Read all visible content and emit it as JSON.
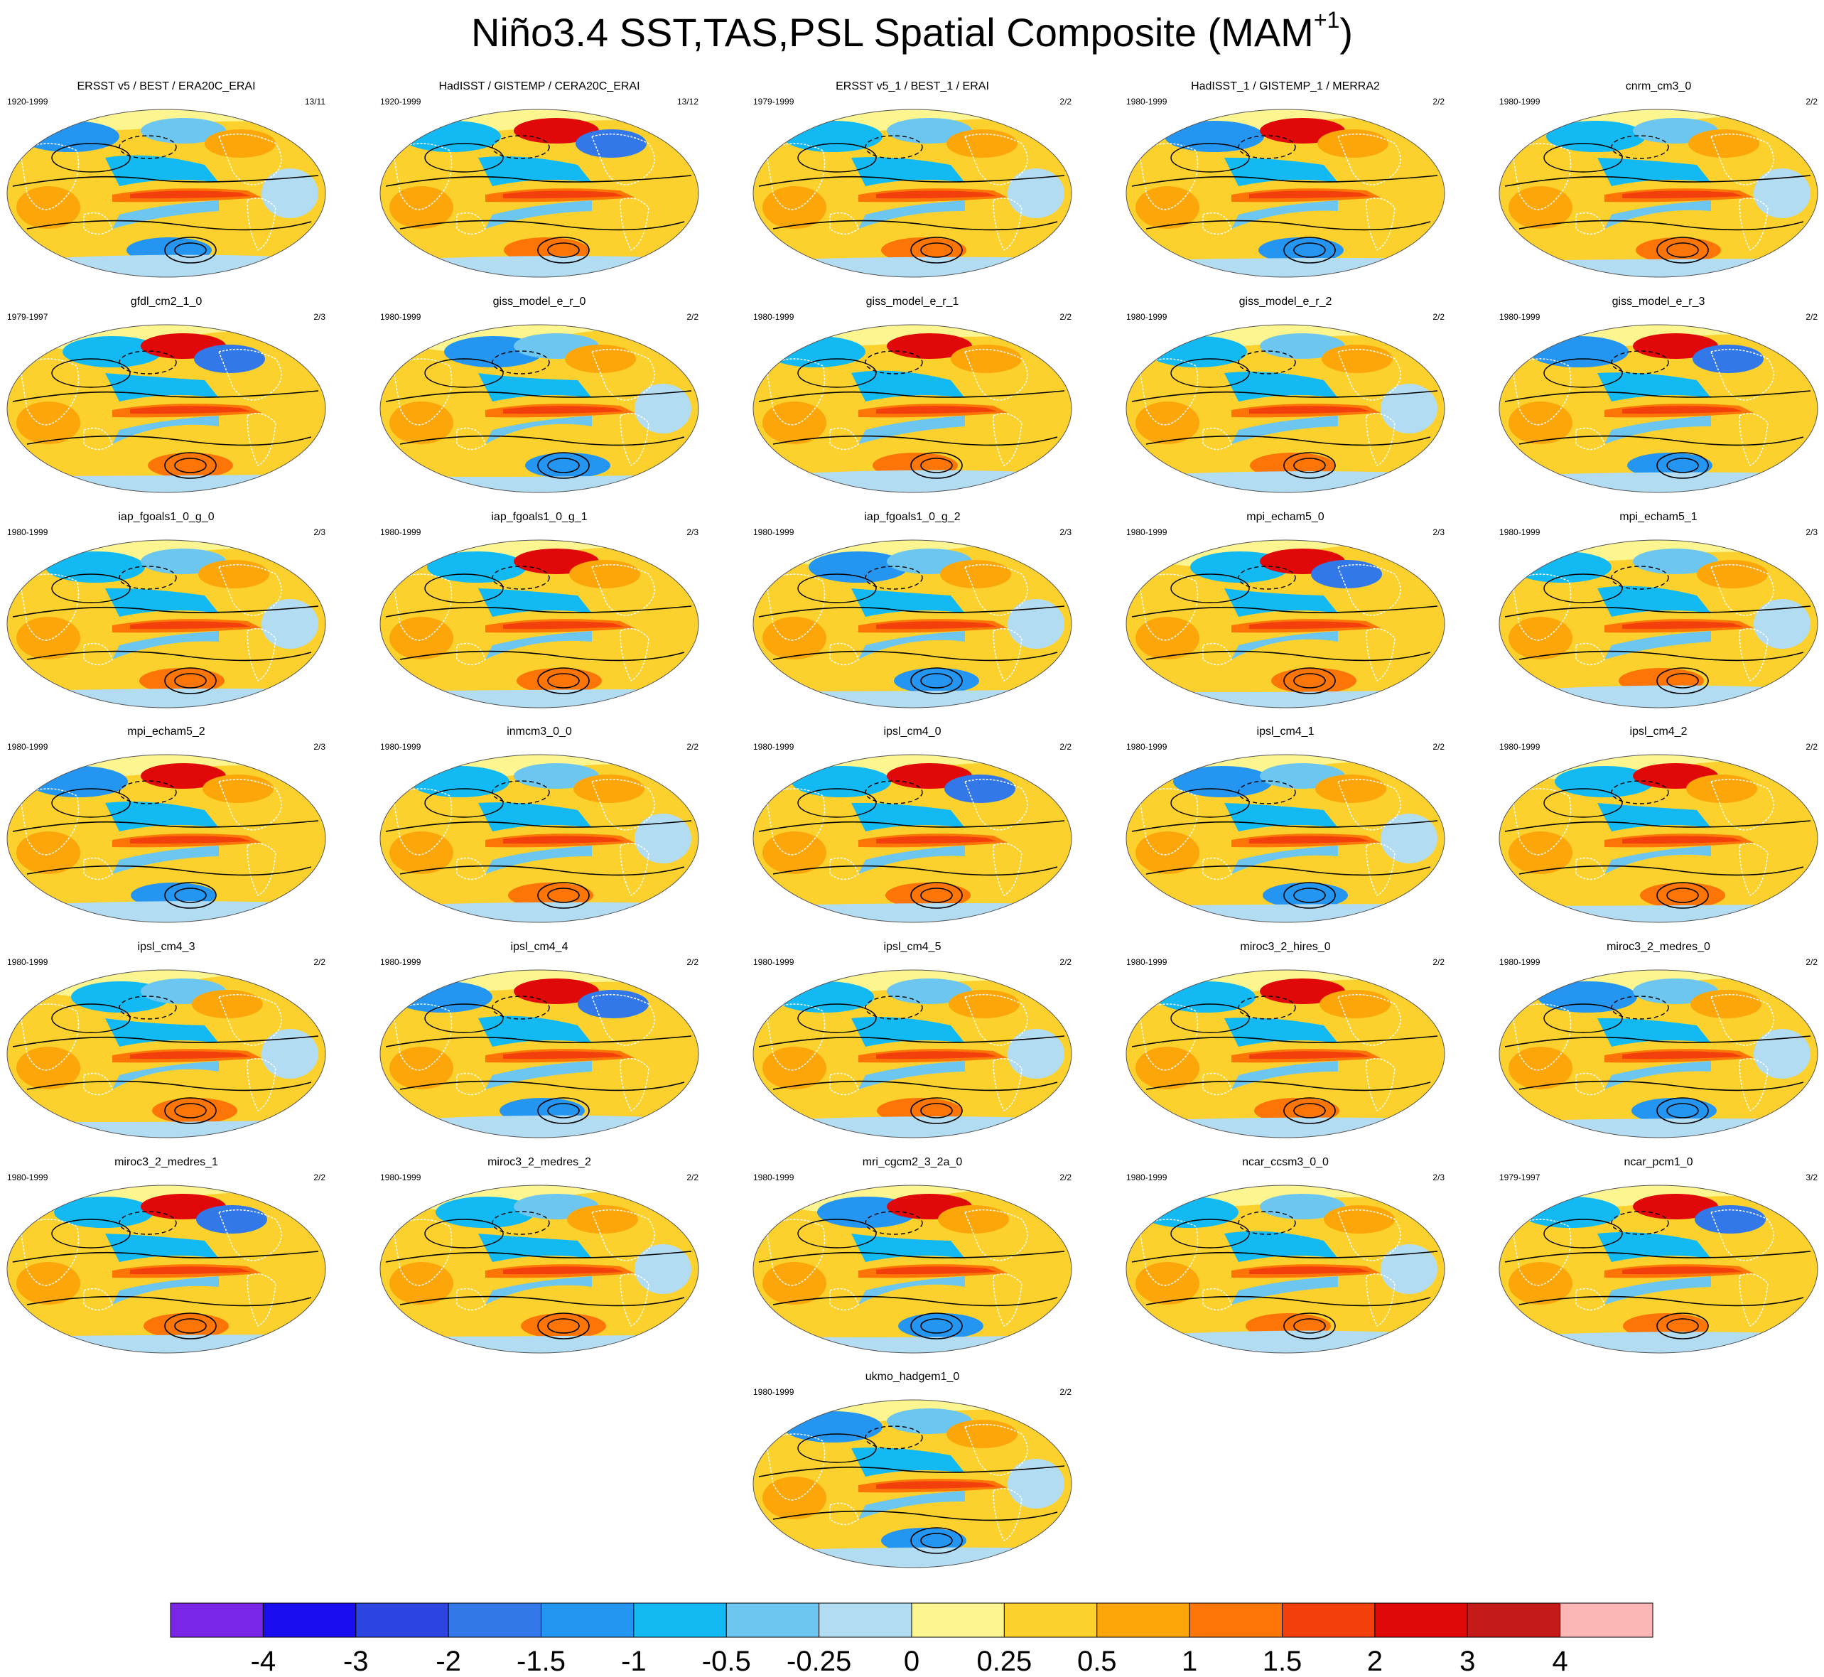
{
  "figure": {
    "title_main": "Niño3.4 SST,TAS,PSL Spatial Composite (MAM",
    "title_sup": "+1",
    "title_close": ")"
  },
  "panels": [
    {
      "title": "ERSST v5 / BEST / ERA20C_ERAI",
      "years": "1920-1999",
      "count": "13/11"
    },
    {
      "title": "HadISST / GISTEMP / CERA20C_ERAI",
      "years": "1920-1999",
      "count": "13/12"
    },
    {
      "title": "ERSST v5_1 / BEST_1 / ERAI",
      "years": "1979-1999",
      "count": "2/2"
    },
    {
      "title": "HadISST_1 / GISTEMP_1 / MERRA2",
      "years": "1980-1999",
      "count": "2/2"
    },
    {
      "title": "cnrm_cm3_0",
      "years": "1980-1999",
      "count": "2/2"
    },
    {
      "title": "gfdl_cm2_1_0",
      "years": "1979-1997",
      "count": "2/3"
    },
    {
      "title": "giss_model_e_r_0",
      "years": "1980-1999",
      "count": "2/2"
    },
    {
      "title": "giss_model_e_r_1",
      "years": "1980-1999",
      "count": "2/2"
    },
    {
      "title": "giss_model_e_r_2",
      "years": "1980-1999",
      "count": "2/2"
    },
    {
      "title": "giss_model_e_r_3",
      "years": "1980-1999",
      "count": "2/2"
    },
    {
      "title": "iap_fgoals1_0_g_0",
      "years": "1980-1999",
      "count": "2/3"
    },
    {
      "title": "iap_fgoals1_0_g_1",
      "years": "1980-1999",
      "count": "2/3"
    },
    {
      "title": "iap_fgoals1_0_g_2",
      "years": "1980-1999",
      "count": "2/3"
    },
    {
      "title": "mpi_echam5_0",
      "years": "1980-1999",
      "count": "2/3"
    },
    {
      "title": "mpi_echam5_1",
      "years": "1980-1999",
      "count": "2/3"
    },
    {
      "title": "mpi_echam5_2",
      "years": "1980-1999",
      "count": "2/3"
    },
    {
      "title": "inmcm3_0_0",
      "years": "1980-1999",
      "count": "2/2"
    },
    {
      "title": "ipsl_cm4_0",
      "years": "1980-1999",
      "count": "2/2"
    },
    {
      "title": "ipsl_cm4_1",
      "years": "1980-1999",
      "count": "2/2"
    },
    {
      "title": "ipsl_cm4_2",
      "years": "1980-1999",
      "count": "2/2"
    },
    {
      "title": "ipsl_cm4_3",
      "years": "1980-1999",
      "count": "2/2"
    },
    {
      "title": "ipsl_cm4_4",
      "years": "1980-1999",
      "count": "2/2"
    },
    {
      "title": "ipsl_cm4_5",
      "years": "1980-1999",
      "count": "2/2"
    },
    {
      "title": "miroc3_2_hires_0",
      "years": "1980-1999",
      "count": "2/2"
    },
    {
      "title": "miroc3_2_medres_0",
      "years": "1980-1999",
      "count": "2/2"
    },
    {
      "title": "miroc3_2_medres_1",
      "years": "1980-1999",
      "count": "2/2"
    },
    {
      "title": "miroc3_2_medres_2",
      "years": "1980-1999",
      "count": "2/2"
    },
    {
      "title": "mri_cgcm2_3_2a_0",
      "years": "1980-1999",
      "count": "2/2"
    },
    {
      "title": "ncar_ccsm3_0_0",
      "years": "1980-1999",
      "count": "2/3"
    },
    {
      "title": "ncar_pcm1_0",
      "years": "1979-1997",
      "count": "3/2"
    },
    {
      "title": "ukmo_hadgem1_0",
      "years": "1980-1999",
      "count": "2/2"
    }
  ],
  "colorbar": {
    "colors": [
      "#7a26e6",
      "#1a0df0",
      "#2d45e0",
      "#3278e8",
      "#2595f2",
      "#12b9f2",
      "#6cc6f0",
      "#b2dcf2",
      "#fcf590",
      "#fcd12e",
      "#fca60a",
      "#fc7506",
      "#f23f0c",
      "#e00808",
      "#c41a1a",
      "#fcb6b6"
    ],
    "labels": [
      "-4",
      "-3",
      "-2",
      "-1.5",
      "-1",
      "-0.5",
      "-0.25",
      "0",
      "0.25",
      "0.5",
      "1",
      "1.5",
      "2",
      "3",
      "4"
    ]
  }
}
